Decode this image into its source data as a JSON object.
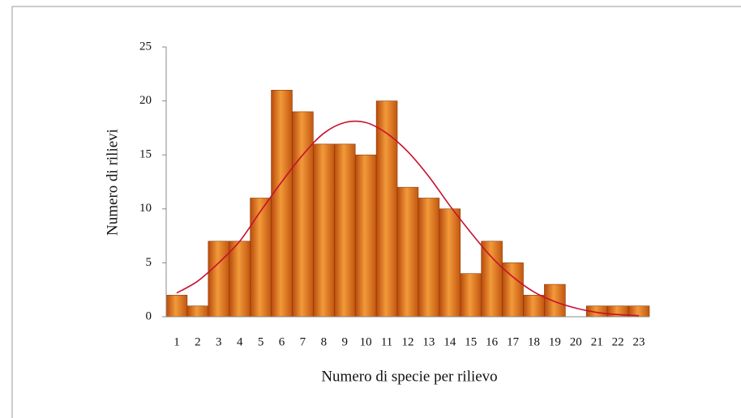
{
  "chart_data": {
    "type": "bar",
    "x_label": "Numero di specie per rilievo",
    "y_label": "Numero di rilievi",
    "categories": [
      "1",
      "2",
      "3",
      "4",
      "5",
      "6",
      "7",
      "8",
      "9",
      "10",
      "11",
      "12",
      "13",
      "14",
      "15",
      "16",
      "17",
      "18",
      "19",
      "20",
      "21",
      "22",
      "23"
    ],
    "series": [
      {
        "type": "bar",
        "color": "#e07020",
        "values": [
          2,
          1,
          7,
          7,
          11,
          21,
          19,
          16,
          16,
          15,
          20,
          12,
          11,
          10,
          4,
          7,
          5,
          2,
          3,
          0,
          1,
          1,
          1
        ]
      },
      {
        "type": "line",
        "color": "#c8102e",
        "values": [
          2.2,
          3.3,
          5,
          7,
          9.8,
          12.5,
          15,
          17,
          18,
          18,
          17,
          15.3,
          13,
          10.3,
          7.8,
          5.5,
          3.7,
          2.3,
          1.4,
          0.8,
          0.4,
          0.2,
          0.1
        ]
      }
    ],
    "ylim": [
      0,
      25
    ],
    "yticks": [
      0,
      5,
      10,
      15,
      20,
      25
    ],
    "grid": false
  }
}
